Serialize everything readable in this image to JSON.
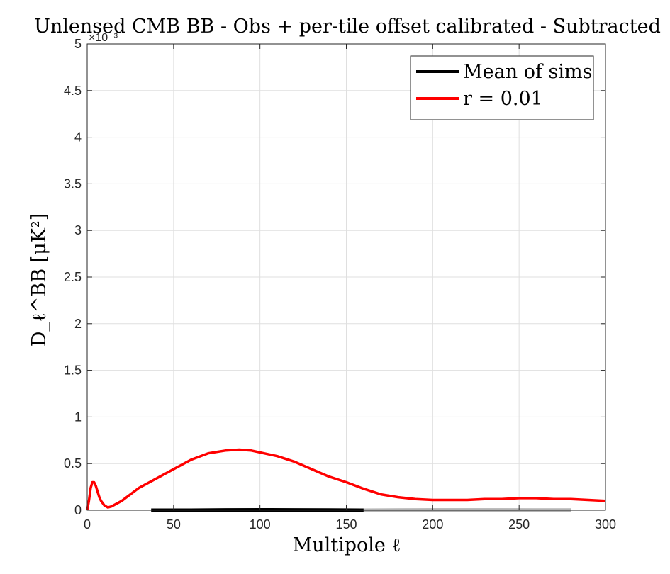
{
  "chart_data": {
    "type": "line",
    "title": "Unlensed CMB BB - Obs + per-tile offset calibrated - Subtracted",
    "xlabel": "Multipole ℓ",
    "ylabel": "D_ℓ^BB [μK²]",
    "y_exponent_label": "×10⁻³",
    "xlim": [
      0,
      300
    ],
    "ylim": [
      0,
      0.005
    ],
    "x_ticks": [
      0,
      50,
      100,
      150,
      200,
      250,
      300
    ],
    "y_ticks": [
      0,
      0.0005,
      0.001,
      0.0015,
      0.002,
      0.0025,
      0.003,
      0.0035,
      0.004,
      0.0045,
      0.005
    ],
    "y_tick_labels": [
      "0",
      "0.5",
      "1",
      "1.5",
      "2",
      "2.5",
      "3",
      "3.5",
      "4",
      "4.5",
      "5"
    ],
    "grid": true,
    "legend_position": "top-right",
    "series": [
      {
        "name": "Mean of sims",
        "color": "#000000",
        "x": [
          37,
          60,
          80,
          100,
          120,
          140,
          160
        ],
        "y": [
          0,
          0,
          3e-06,
          4e-06,
          3e-06,
          2e-06,
          0
        ]
      },
      {
        "name": "",
        "color": "#b4b4b4",
        "x": [
          160,
          180,
          200,
          220,
          240,
          260,
          280
        ],
        "y": [
          0,
          2e-06,
          3e-06,
          3e-06,
          3e-06,
          2e-06,
          2e-06
        ]
      },
      {
        "name": "r = 0.01",
        "color": "#ff0000",
        "x": [
          0,
          1,
          2,
          3,
          4,
          5,
          6,
          7,
          8,
          10,
          12,
          14,
          16,
          20,
          25,
          30,
          40,
          50,
          60,
          70,
          80,
          88,
          95,
          100,
          110,
          120,
          130,
          140,
          150,
          160,
          170,
          180,
          190,
          200,
          210,
          220,
          230,
          240,
          250,
          260,
          270,
          280,
          290,
          300
        ],
        "y": [
          0,
          0.0001,
          0.00024,
          0.0003,
          0.0003,
          0.00026,
          0.0002,
          0.00014,
          0.0001,
          5e-05,
          3e-05,
          4e-05,
          6e-05,
          0.0001,
          0.00017,
          0.00024,
          0.00034,
          0.00044,
          0.00054,
          0.00061,
          0.00064,
          0.00065,
          0.00064,
          0.00062,
          0.00058,
          0.00052,
          0.00044,
          0.00036,
          0.0003,
          0.00023,
          0.00017,
          0.00014,
          0.00012,
          0.00011,
          0.00011,
          0.00011,
          0.00012,
          0.00012,
          0.00013,
          0.00013,
          0.00012,
          0.00012,
          0.00011,
          0.0001
        ]
      }
    ]
  }
}
